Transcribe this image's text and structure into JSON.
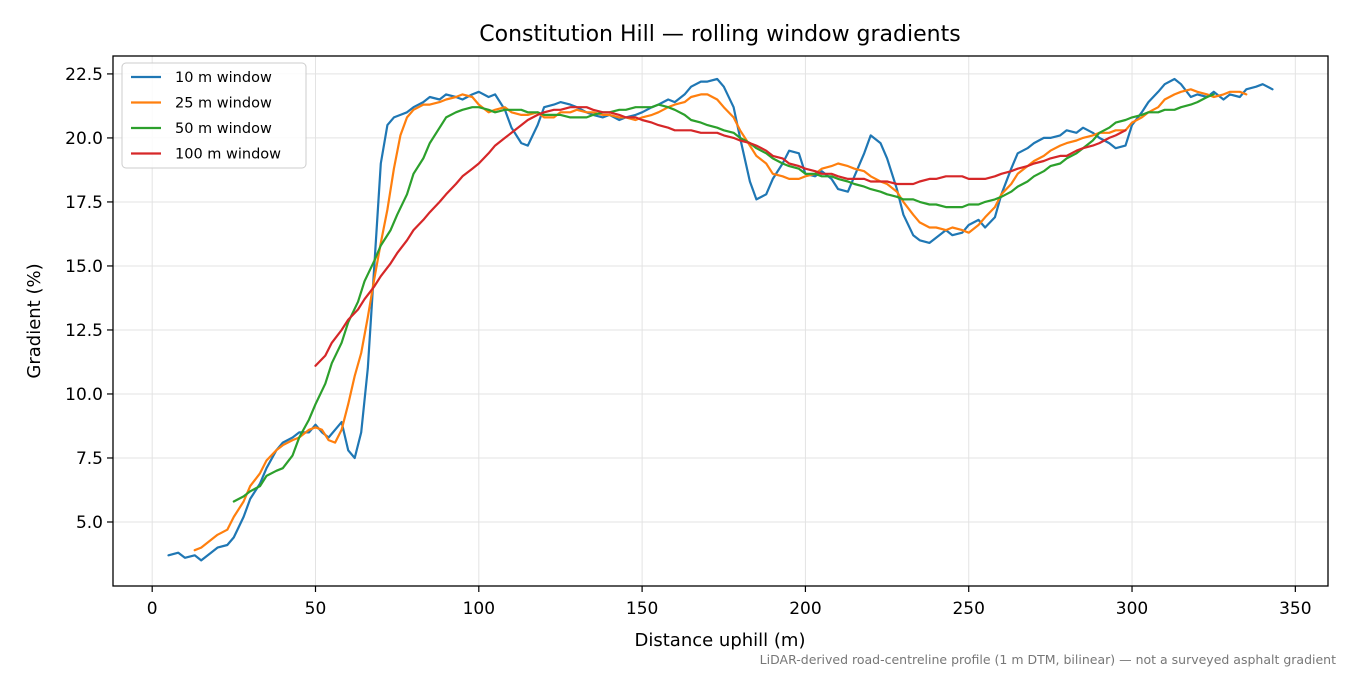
{
  "chart_data": {
    "type": "line",
    "title": "Constitution Hill — rolling window gradients",
    "xlabel": "Distance uphill (m)",
    "ylabel": "Gradient (%)",
    "xlim": [
      -12,
      360
    ],
    "ylim": [
      2.5,
      23.2
    ],
    "xticks": [
      0,
      50,
      100,
      150,
      200,
      250,
      300,
      350
    ],
    "yticks": [
      5.0,
      7.5,
      10.0,
      12.5,
      15.0,
      17.5,
      20.0,
      22.5
    ],
    "xtick_labels": [
      "0",
      "50",
      "100",
      "150",
      "200",
      "250",
      "300",
      "350"
    ],
    "ytick_labels": [
      "5.0",
      "7.5",
      "10.0",
      "12.5",
      "15.0",
      "17.5",
      "20.0",
      "22.5"
    ],
    "grid": true,
    "legend_position": "top-left",
    "series": [
      {
        "name": "10 m window",
        "color": "#1f77b4",
        "x": [
          5,
          8,
          10,
          13,
          15,
          18,
          20,
          23,
          25,
          28,
          30,
          33,
          35,
          38,
          40,
          43,
          45,
          48,
          50,
          52,
          54,
          56,
          58,
          60,
          62,
          64,
          66,
          68,
          70,
          72,
          74,
          76,
          78,
          80,
          83,
          85,
          88,
          90,
          93,
          95,
          98,
          100,
          103,
          105,
          108,
          110,
          113,
          115,
          118,
          120,
          123,
          125,
          128,
          130,
          133,
          135,
          138,
          140,
          143,
          145,
          148,
          150,
          153,
          155,
          158,
          160,
          163,
          165,
          168,
          170,
          173,
          175,
          178,
          180,
          183,
          185,
          188,
          190,
          193,
          195,
          198,
          200,
          203,
          205,
          208,
          210,
          213,
          215,
          218,
          220,
          223,
          225,
          228,
          230,
          233,
          235,
          238,
          240,
          243,
          245,
          248,
          250,
          253,
          255,
          258,
          260,
          263,
          265,
          268,
          270,
          273,
          275,
          278,
          280,
          283,
          285,
          288,
          290,
          293,
          295,
          298,
          300,
          303,
          305,
          308,
          310,
          313,
          315,
          318,
          320,
          323,
          325,
          328,
          330,
          333,
          335,
          338,
          340,
          343
        ],
        "y": [
          3.7,
          3.8,
          3.6,
          3.7,
          3.5,
          3.8,
          4.0,
          4.1,
          4.4,
          5.2,
          5.9,
          6.5,
          7.1,
          7.8,
          8.1,
          8.3,
          8.5,
          8.5,
          8.8,
          8.5,
          8.3,
          8.6,
          8.9,
          7.8,
          7.5,
          8.5,
          11.0,
          15.0,
          19.0,
          20.5,
          20.8,
          20.9,
          21.0,
          21.2,
          21.4,
          21.6,
          21.5,
          21.7,
          21.6,
          21.5,
          21.7,
          21.8,
          21.6,
          21.7,
          21.1,
          20.4,
          19.8,
          19.7,
          20.5,
          21.2,
          21.3,
          21.4,
          21.3,
          21.2,
          21.0,
          20.9,
          20.8,
          20.9,
          20.7,
          20.8,
          20.9,
          21.0,
          21.2,
          21.3,
          21.5,
          21.4,
          21.7,
          22.0,
          22.2,
          22.2,
          22.3,
          22.0,
          21.2,
          20.0,
          18.3,
          17.6,
          17.8,
          18.4,
          19.0,
          19.5,
          19.4,
          18.6,
          18.5,
          18.7,
          18.4,
          18.0,
          17.9,
          18.5,
          19.4,
          20.1,
          19.8,
          19.2,
          18.0,
          17.0,
          16.2,
          16.0,
          15.9,
          16.1,
          16.4,
          16.2,
          16.3,
          16.6,
          16.8,
          16.5,
          16.9,
          17.8,
          18.8,
          19.4,
          19.6,
          19.8,
          20.0,
          20.0,
          20.1,
          20.3,
          20.2,
          20.4,
          20.2,
          20.0,
          19.8,
          19.6,
          19.7,
          20.5,
          21.0,
          21.4,
          21.8,
          22.1,
          22.3,
          22.1,
          21.6,
          21.7,
          21.6,
          21.8,
          21.5,
          21.7,
          21.6,
          21.9,
          22.0,
          22.1,
          21.9
        ]
      },
      {
        "name": "25 m window",
        "color": "#ff7f0e",
        "x": [
          13,
          15,
          18,
          20,
          23,
          25,
          28,
          30,
          33,
          35,
          38,
          40,
          43,
          45,
          48,
          50,
          52,
          54,
          56,
          58,
          60,
          62,
          64,
          66,
          68,
          70,
          72,
          74,
          76,
          78,
          80,
          83,
          85,
          88,
          90,
          93,
          95,
          98,
          100,
          103,
          105,
          108,
          110,
          113,
          115,
          118,
          120,
          123,
          125,
          128,
          130,
          133,
          135,
          138,
          140,
          143,
          145,
          148,
          150,
          153,
          155,
          158,
          160,
          163,
          165,
          168,
          170,
          173,
          175,
          178,
          180,
          183,
          185,
          188,
          190,
          193,
          195,
          198,
          200,
          203,
          205,
          208,
          210,
          213,
          215,
          218,
          220,
          223,
          225,
          228,
          230,
          233,
          235,
          238,
          240,
          243,
          245,
          248,
          250,
          253,
          255,
          258,
          260,
          263,
          265,
          268,
          270,
          273,
          275,
          278,
          280,
          283,
          285,
          288,
          290,
          293,
          295,
          298,
          300,
          303,
          305,
          308,
          310,
          313,
          315,
          318,
          320,
          323,
          325,
          328,
          330,
          333,
          335
        ],
        "y": [
          3.9,
          4.0,
          4.3,
          4.5,
          4.7,
          5.2,
          5.8,
          6.4,
          6.9,
          7.4,
          7.8,
          8.0,
          8.2,
          8.3,
          8.6,
          8.7,
          8.6,
          8.2,
          8.1,
          8.6,
          9.6,
          10.7,
          11.6,
          13.0,
          14.5,
          15.9,
          17.2,
          18.8,
          20.1,
          20.8,
          21.1,
          21.3,
          21.3,
          21.4,
          21.5,
          21.6,
          21.7,
          21.6,
          21.3,
          21.0,
          21.1,
          21.2,
          21.0,
          20.9,
          20.9,
          21.0,
          20.8,
          20.8,
          21.0,
          21.0,
          21.1,
          21.0,
          21.0,
          20.9,
          20.9,
          20.8,
          20.8,
          20.7,
          20.8,
          20.9,
          21.0,
          21.2,
          21.3,
          21.4,
          21.6,
          21.7,
          21.7,
          21.5,
          21.2,
          20.8,
          20.3,
          19.7,
          19.3,
          19.0,
          18.6,
          18.5,
          18.4,
          18.4,
          18.5,
          18.6,
          18.8,
          18.9,
          19.0,
          18.9,
          18.8,
          18.7,
          18.5,
          18.3,
          18.2,
          17.9,
          17.5,
          17.0,
          16.7,
          16.5,
          16.5,
          16.4,
          16.5,
          16.4,
          16.3,
          16.6,
          16.9,
          17.3,
          17.8,
          18.2,
          18.6,
          18.9,
          19.1,
          19.3,
          19.5,
          19.7,
          19.8,
          19.9,
          20.0,
          20.1,
          20.2,
          20.2,
          20.3,
          20.3,
          20.6,
          20.8,
          21.0,
          21.2,
          21.5,
          21.7,
          21.8,
          21.9,
          21.8,
          21.7,
          21.6,
          21.7,
          21.8,
          21.8,
          21.7
        ]
      },
      {
        "name": "50 m window",
        "color": "#2ca02c",
        "x": [
          25,
          28,
          30,
          33,
          35,
          38,
          40,
          43,
          45,
          48,
          50,
          53,
          55,
          58,
          60,
          63,
          65,
          68,
          70,
          73,
          75,
          78,
          80,
          83,
          85,
          88,
          90,
          93,
          95,
          98,
          100,
          103,
          105,
          108,
          110,
          113,
          115,
          118,
          120,
          123,
          125,
          128,
          130,
          133,
          135,
          138,
          140,
          143,
          145,
          148,
          150,
          153,
          155,
          158,
          160,
          163,
          165,
          168,
          170,
          173,
          175,
          178,
          180,
          183,
          185,
          188,
          190,
          193,
          195,
          198,
          200,
          203,
          205,
          208,
          210,
          213,
          215,
          218,
          220,
          223,
          225,
          228,
          230,
          233,
          235,
          238,
          240,
          243,
          245,
          248,
          250,
          253,
          255,
          258,
          260,
          263,
          265,
          268,
          270,
          273,
          275,
          278,
          280,
          283,
          285,
          288,
          290,
          293,
          295,
          298,
          300,
          303,
          305,
          308,
          310,
          313,
          315,
          318,
          320,
          323,
          325
        ],
        "y": [
          5.8,
          6.0,
          6.2,
          6.4,
          6.8,
          7.0,
          7.1,
          7.6,
          8.3,
          9.0,
          9.6,
          10.4,
          11.2,
          12.0,
          12.8,
          13.6,
          14.4,
          15.2,
          15.8,
          16.4,
          17.0,
          17.8,
          18.6,
          19.2,
          19.8,
          20.4,
          20.8,
          21.0,
          21.1,
          21.2,
          21.2,
          21.1,
          21.0,
          21.1,
          21.1,
          21.1,
          21.0,
          21.0,
          20.9,
          20.9,
          20.9,
          20.8,
          20.8,
          20.8,
          20.9,
          21.0,
          21.0,
          21.1,
          21.1,
          21.2,
          21.2,
          21.2,
          21.3,
          21.2,
          21.1,
          20.9,
          20.7,
          20.6,
          20.5,
          20.4,
          20.3,
          20.2,
          20.0,
          19.8,
          19.6,
          19.4,
          19.2,
          19.0,
          18.9,
          18.8,
          18.6,
          18.6,
          18.5,
          18.5,
          18.4,
          18.3,
          18.2,
          18.1,
          18.0,
          17.9,
          17.8,
          17.7,
          17.6,
          17.6,
          17.5,
          17.4,
          17.4,
          17.3,
          17.3,
          17.3,
          17.4,
          17.4,
          17.5,
          17.6,
          17.7,
          17.9,
          18.1,
          18.3,
          18.5,
          18.7,
          18.9,
          19.0,
          19.2,
          19.4,
          19.6,
          19.9,
          20.2,
          20.4,
          20.6,
          20.7,
          20.8,
          20.9,
          21.0,
          21.0,
          21.1,
          21.1,
          21.2,
          21.3,
          21.4,
          21.6,
          21.7
        ]
      },
      {
        "name": "100 m window",
        "color": "#d62728",
        "x": [
          50,
          53,
          55,
          58,
          60,
          63,
          65,
          68,
          70,
          73,
          75,
          78,
          80,
          83,
          85,
          88,
          90,
          93,
          95,
          98,
          100,
          103,
          105,
          108,
          110,
          113,
          115,
          118,
          120,
          123,
          125,
          128,
          130,
          133,
          135,
          138,
          140,
          143,
          145,
          148,
          150,
          153,
          155,
          158,
          160,
          163,
          165,
          168,
          170,
          173,
          175,
          178,
          180,
          183,
          185,
          188,
          190,
          193,
          195,
          198,
          200,
          203,
          205,
          208,
          210,
          213,
          215,
          218,
          220,
          223,
          225,
          228,
          230,
          233,
          235,
          238,
          240,
          243,
          245,
          248,
          250,
          253,
          255,
          258,
          260,
          263,
          265,
          268,
          270,
          273,
          275,
          278,
          280,
          283,
          285,
          288,
          290,
          293,
          295,
          298
        ],
        "y": [
          11.1,
          11.5,
          12.0,
          12.5,
          12.9,
          13.3,
          13.7,
          14.2,
          14.6,
          15.1,
          15.5,
          16.0,
          16.4,
          16.8,
          17.1,
          17.5,
          17.8,
          18.2,
          18.5,
          18.8,
          19.0,
          19.4,
          19.7,
          20.0,
          20.2,
          20.5,
          20.7,
          20.9,
          21.0,
          21.1,
          21.1,
          21.2,
          21.2,
          21.2,
          21.1,
          21.0,
          21.0,
          20.9,
          20.8,
          20.8,
          20.7,
          20.6,
          20.5,
          20.4,
          20.3,
          20.3,
          20.3,
          20.2,
          20.2,
          20.2,
          20.1,
          20.0,
          19.9,
          19.8,
          19.7,
          19.5,
          19.3,
          19.2,
          19.0,
          18.9,
          18.8,
          18.7,
          18.6,
          18.6,
          18.5,
          18.4,
          18.4,
          18.4,
          18.3,
          18.3,
          18.3,
          18.2,
          18.2,
          18.2,
          18.3,
          18.4,
          18.4,
          18.5,
          18.5,
          18.5,
          18.4,
          18.4,
          18.4,
          18.5,
          18.6,
          18.7,
          18.8,
          18.9,
          19.0,
          19.1,
          19.2,
          19.3,
          19.3,
          19.5,
          19.6,
          19.7,
          19.8,
          20.0,
          20.1,
          20.3
        ]
      }
    ]
  },
  "footnote": "LiDAR-derived road-centreline profile (1 m DTM, bilinear) — not a surveyed asphalt gradient"
}
